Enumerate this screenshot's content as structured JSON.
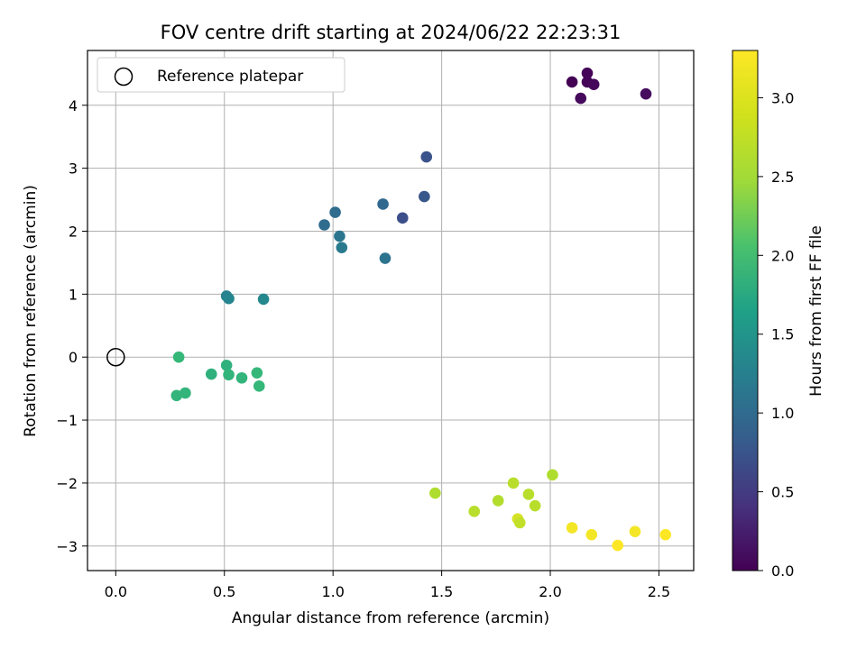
{
  "chart_data": {
    "type": "scatter",
    "title": "FOV centre drift starting at 2024/06/22 22:23:31",
    "xlabel": "Angular distance from reference (arcmin)",
    "ylabel": "Rotation from reference (arcmin)",
    "xlim": [
      -0.13,
      2.66
    ],
    "ylim": [
      -3.39,
      4.87
    ],
    "xticks": [
      "0.0",
      "0.5",
      "1.0",
      "1.5",
      "2.0",
      "2.5"
    ],
    "xtick_values": [
      0,
      0.5,
      1.0,
      1.5,
      2.0,
      2.5
    ],
    "yticks": [
      "−3",
      "−2",
      "−1",
      "0",
      "1",
      "2",
      "3",
      "4"
    ],
    "ytick_values": [
      -3,
      -2,
      -1,
      0,
      1,
      2,
      3,
      4
    ],
    "grid": true,
    "legend": {
      "label": "Reference platepar",
      "placement": "top-left"
    },
    "reference_point": {
      "x": 0,
      "y": 0
    },
    "colorbar": {
      "label": "Hours from first FF file",
      "range": [
        0,
        3.3
      ],
      "ticks": [
        "0.0",
        "0.5",
        "1.0",
        "1.5",
        "2.0",
        "2.5",
        "3.0"
      ],
      "tick_values": [
        0,
        0.5,
        1.0,
        1.5,
        2.0,
        2.5,
        3.0
      ],
      "colormap": "viridis"
    },
    "points": [
      {
        "x": 2.1,
        "y": 4.37,
        "c": 0.0
      },
      {
        "x": 2.17,
        "y": 4.51,
        "c": 0.02
      },
      {
        "x": 2.17,
        "y": 4.37,
        "c": 0.04
      },
      {
        "x": 2.2,
        "y": 4.33,
        "c": 0.06
      },
      {
        "x": 2.14,
        "y": 4.11,
        "c": 0.08
      },
      {
        "x": 2.44,
        "y": 4.18,
        "c": 0.1
      },
      {
        "x": 1.43,
        "y": 3.18,
        "c": 0.85
      },
      {
        "x": 1.42,
        "y": 2.55,
        "c": 0.9
      },
      {
        "x": 1.32,
        "y": 2.21,
        "c": 0.8
      },
      {
        "x": 1.23,
        "y": 2.43,
        "c": 1.1
      },
      {
        "x": 1.24,
        "y": 1.57,
        "c": 1.25
      },
      {
        "x": 1.01,
        "y": 2.3,
        "c": 1.15
      },
      {
        "x": 0.96,
        "y": 2.1,
        "c": 1.15
      },
      {
        "x": 1.03,
        "y": 1.92,
        "c": 1.3
      },
      {
        "x": 1.04,
        "y": 1.74,
        "c": 1.35
      },
      {
        "x": 0.51,
        "y": 0.97,
        "c": 1.45
      },
      {
        "x": 0.52,
        "y": 0.93,
        "c": 1.5
      },
      {
        "x": 0.68,
        "y": 0.92,
        "c": 1.55
      },
      {
        "x": 0.29,
        "y": 0.0,
        "c": 2.2
      },
      {
        "x": 0.51,
        "y": -0.13,
        "c": 2.1
      },
      {
        "x": 0.52,
        "y": -0.28,
        "c": 2.15
      },
      {
        "x": 0.44,
        "y": -0.27,
        "c": 2.1
      },
      {
        "x": 0.58,
        "y": -0.33,
        "c": 2.15
      },
      {
        "x": 0.65,
        "y": -0.25,
        "c": 2.2
      },
      {
        "x": 0.66,
        "y": -0.46,
        "c": 2.2
      },
      {
        "x": 0.28,
        "y": -0.61,
        "c": 2.15
      },
      {
        "x": 0.32,
        "y": -0.57,
        "c": 2.15
      },
      {
        "x": 1.47,
        "y": -2.16,
        "c": 2.9
      },
      {
        "x": 1.65,
        "y": -2.45,
        "c": 2.95
      },
      {
        "x": 1.76,
        "y": -2.28,
        "c": 2.92
      },
      {
        "x": 1.83,
        "y": -2.0,
        "c": 2.95
      },
      {
        "x": 1.9,
        "y": -2.18,
        "c": 2.95
      },
      {
        "x": 1.93,
        "y": -2.36,
        "c": 2.95
      },
      {
        "x": 2.01,
        "y": -1.87,
        "c": 2.9
      },
      {
        "x": 1.85,
        "y": -2.57,
        "c": 3.1
      },
      {
        "x": 1.86,
        "y": -2.63,
        "c": 3.0
      },
      {
        "x": 2.1,
        "y": -2.71,
        "c": 3.25
      },
      {
        "x": 2.19,
        "y": -2.82,
        "c": 3.25
      },
      {
        "x": 2.31,
        "y": -2.99,
        "c": 3.3
      },
      {
        "x": 2.39,
        "y": -2.77,
        "c": 3.25
      },
      {
        "x": 2.53,
        "y": -2.82,
        "c": 3.3
      }
    ]
  }
}
